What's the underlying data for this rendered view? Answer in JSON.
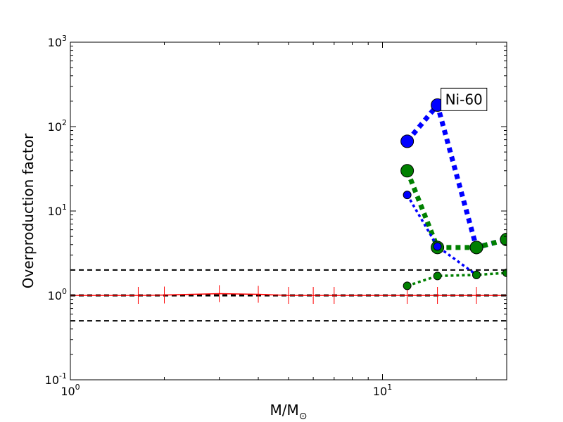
{
  "chart_data": {
    "type": "line",
    "title": "",
    "xlabel": "M/M",
    "xlabel_subscript": "⊙",
    "ylabel": "Overproduction factor",
    "xscale": "log",
    "yscale": "log",
    "xlim": [
      1,
      25
    ],
    "ylim": [
      0.1,
      1000
    ],
    "x_ticks": [
      {
        "base": "10",
        "exp": "0",
        "value": 1
      },
      {
        "base": "10",
        "exp": "1",
        "value": 10
      }
    ],
    "y_ticks": [
      {
        "base": "10",
        "exp": "-1",
        "value": 0.1
      },
      {
        "base": "10",
        "exp": "0",
        "value": 1
      },
      {
        "base": "10",
        "exp": "1",
        "value": 10
      },
      {
        "base": "10",
        "exp": "2",
        "value": 100
      },
      {
        "base": "10",
        "exp": "3",
        "value": 1000
      }
    ],
    "annotation": "Ni-60",
    "annotation_position": [
      15,
      180
    ],
    "reference_lines": [
      0.5,
      1.0,
      2.0
    ],
    "reference_curve": {
      "color": "#ff0000",
      "points": [
        {
          "x": 1.0,
          "y": 1.0
        },
        {
          "x": 1.65,
          "y": 1.0
        },
        {
          "x": 2.0,
          "y": 1.01
        },
        {
          "x": 3.0,
          "y": 1.05
        },
        {
          "x": 4.0,
          "y": 1.03
        },
        {
          "x": 5.0,
          "y": 1.0
        },
        {
          "x": 6.0,
          "y": 1.0
        },
        {
          "x": 7.0,
          "y": 1.0
        },
        {
          "x": 12.0,
          "y": 1.0
        },
        {
          "x": 15.0,
          "y": 1.0
        },
        {
          "x": 20.0,
          "y": 1.0
        },
        {
          "x": 25.0,
          "y": 1.0
        }
      ]
    },
    "series": [
      {
        "color": "#0000ff",
        "marker_r": 9,
        "line_width": 7,
        "points": [
          {
            "x": 12,
            "y": 67
          },
          {
            "x": 15,
            "y": 180
          },
          {
            "x": 20,
            "y": 3.7
          },
          {
            "x": 25,
            "y": 4.6
          }
        ]
      },
      {
        "color": "#008000",
        "marker_r": 9,
        "line_width": 7,
        "points": [
          {
            "x": 12,
            "y": 30
          },
          {
            "x": 15,
            "y": 3.7
          },
          {
            "x": 20,
            "y": 3.7
          },
          {
            "x": 25,
            "y": 4.6
          }
        ]
      },
      {
        "color": "#0000ff",
        "marker_r": 5.5,
        "line_width": 3.5,
        "points": [
          {
            "x": 12,
            "y": 15.5
          },
          {
            "x": 15,
            "y": 3.8
          },
          {
            "x": 20,
            "y": 1.75
          }
        ]
      },
      {
        "color": "#008000",
        "marker_r": 5.5,
        "line_width": 3.5,
        "points": [
          {
            "x": 12,
            "y": 1.3
          },
          {
            "x": 15,
            "y": 1.7
          },
          {
            "x": 20,
            "y": 1.75
          },
          {
            "x": 25,
            "y": 1.85
          }
        ]
      }
    ]
  }
}
